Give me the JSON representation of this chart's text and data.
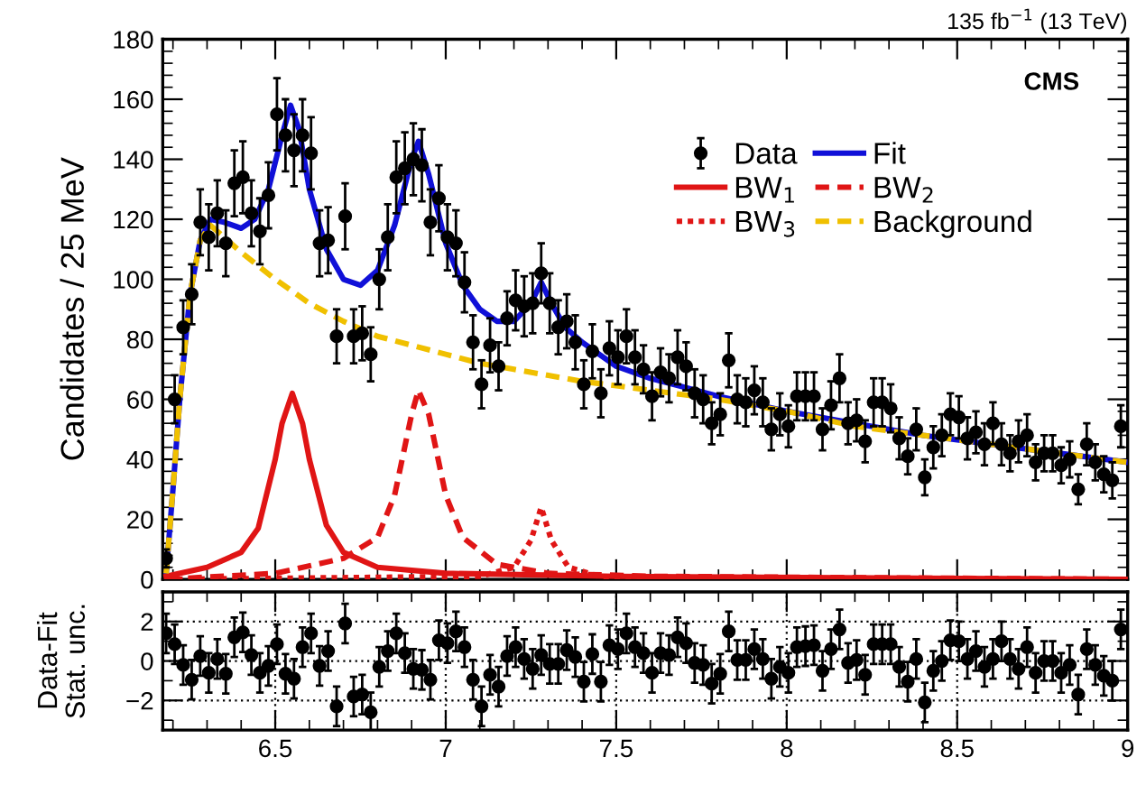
{
  "chart_data": [
    {
      "type": "scatter",
      "ylabel": "Candidates / 25 MeV",
      "annotations": [
        "135 fb$^{−1}$ (13 TeV)",
        "CMS"
      ],
      "xlim": [
        6.17,
        9.0
      ],
      "xticks": [
        6.5,
        7,
        7.5,
        8,
        8.5,
        9
      ],
      "ylim": [
        0,
        180
      ],
      "yticks": [
        0,
        20,
        40,
        60,
        80,
        100,
        120,
        140,
        160,
        180
      ],
      "tick_labels": "y",
      "legend": "top right",
      "grid": false,
      "series": [
        {
          "name": "Data",
          "marker": "circle",
          "color": "#000000",
          "x": [
            6.18,
            6.205,
            6.23,
            6.255,
            6.28,
            6.305,
            6.33,
            6.355,
            6.38,
            6.405,
            6.43,
            6.455,
            6.48,
            6.505,
            6.53,
            6.555,
            6.58,
            6.605,
            6.63,
            6.655,
            6.68,
            6.705,
            6.73,
            6.755,
            6.78,
            6.805,
            6.83,
            6.855,
            6.88,
            6.905,
            6.93,
            6.955,
            6.98,
            7.005,
            7.03,
            7.055,
            7.08,
            7.105,
            7.13,
            7.155,
            7.18,
            7.205,
            7.23,
            7.255,
            7.28,
            7.305,
            7.33,
            7.355,
            7.38,
            7.405,
            7.43,
            7.455,
            7.48,
            7.505,
            7.53,
            7.555,
            7.58,
            7.605,
            7.63,
            7.655,
            7.68,
            7.705,
            7.73,
            7.755,
            7.78,
            7.805,
            7.83,
            7.855,
            7.88,
            7.905,
            7.93,
            7.955,
            7.98,
            8.005,
            8.03,
            8.055,
            8.08,
            8.105,
            8.13,
            8.155,
            8.18,
            8.205,
            8.23,
            8.255,
            8.28,
            8.305,
            8.33,
            8.355,
            8.38,
            8.405,
            8.43,
            8.455,
            8.48,
            8.505,
            8.53,
            8.555,
            8.58,
            8.605,
            8.63,
            8.655,
            8.68,
            8.705,
            8.73,
            8.755,
            8.78,
            8.805,
            8.83,
            8.855,
            8.88,
            8.905,
            8.93,
            8.955,
            8.98
          ],
          "values": [
            7,
            60,
            84,
            95,
            119,
            114,
            122,
            112,
            132,
            134,
            122,
            116,
            128,
            155,
            148,
            143,
            148,
            142,
            112,
            113,
            81,
            121,
            81,
            82,
            75,
            100,
            114,
            134,
            137,
            140,
            138,
            119,
            127,
            114,
            112,
            99,
            79,
            65,
            78,
            71,
            87,
            93,
            91,
            92,
            102,
            92,
            84,
            86,
            79,
            65,
            76,
            62,
            77,
            74,
            81,
            74,
            70,
            61,
            69,
            67,
            74,
            71,
            62,
            60,
            52,
            55,
            73,
            60,
            59,
            63,
            59,
            50,
            55,
            51,
            61,
            61,
            61,
            50,
            58,
            67,
            52,
            53,
            46,
            59,
            59,
            57,
            47,
            41,
            50,
            34,
            44,
            48,
            55,
            54,
            47,
            49,
            45,
            52,
            45,
            42,
            46,
            48,
            39,
            42,
            42,
            38,
            40,
            30,
            45,
            39,
            35,
            33,
            51
          ],
          "errors": [
            3,
            8,
            9,
            10,
            11,
            11,
            11,
            11,
            11,
            12,
            11,
            11,
            11,
            12,
            12,
            12,
            12,
            12,
            11,
            11,
            9,
            11,
            9,
            9,
            9,
            10,
            11,
            12,
            12,
            12,
            12,
            11,
            11,
            11,
            11,
            10,
            9,
            8,
            9,
            8,
            9,
            10,
            10,
            10,
            10,
            10,
            9,
            9,
            9,
            8,
            9,
            8,
            9,
            9,
            9,
            9,
            8,
            8,
            8,
            8,
            9,
            8,
            8,
            8,
            7,
            7,
            9,
            8,
            8,
            8,
            8,
            7,
            7,
            7,
            8,
            8,
            8,
            7,
            8,
            8,
            7,
            7,
            7,
            8,
            8,
            8,
            7,
            6,
            7,
            6,
            7,
            7,
            7,
            7,
            7,
            7,
            7,
            7,
            7,
            6,
            7,
            7,
            6,
            6,
            6,
            6,
            6,
            5,
            7,
            6,
            6,
            6,
            7
          ]
        },
        {
          "name": "Fit",
          "type": "line",
          "color": "#1010d8",
          "line_style": "solid",
          "x": [
            6.18,
            6.2,
            6.22,
            6.25,
            6.28,
            6.31,
            6.35,
            6.4,
            6.44,
            6.48,
            6.52,
            6.545,
            6.57,
            6.6,
            6.65,
            6.7,
            6.75,
            6.8,
            6.85,
            6.9,
            6.92,
            6.95,
            7.0,
            7.05,
            7.1,
            7.15,
            7.2,
            7.25,
            7.28,
            7.31,
            7.35,
            7.4,
            7.5,
            7.6,
            7.8,
            8.0,
            8.2,
            8.4,
            8.6,
            8.8,
            9.0
          ],
          "values": [
            2,
            30,
            60,
            95,
            113,
            120,
            119,
            117,
            120,
            130,
            148,
            158,
            150,
            130,
            110,
            100,
            98,
            103,
            118,
            140,
            146,
            135,
            112,
            98,
            90,
            86,
            86,
            92,
            99,
            92,
            84,
            79,
            71,
            67,
            61,
            56,
            52,
            48,
            45,
            42,
            39
          ]
        },
        {
          "name": "BW$_{1}$",
          "type": "line",
          "color": "#e01515",
          "line_style": "solid",
          "x": [
            6.18,
            6.3,
            6.4,
            6.45,
            6.5,
            6.52,
            6.55,
            6.58,
            6.6,
            6.65,
            6.7,
            6.8,
            7.0,
            7.5,
            9.0
          ],
          "values": [
            1,
            4,
            9,
            17,
            40,
            52,
            62,
            52,
            40,
            18,
            9,
            4,
            2,
            1,
            0
          ]
        },
        {
          "name": "BW$_{2}$",
          "type": "line",
          "color": "#e01515",
          "line_style": "dashed",
          "x": [
            6.18,
            6.5,
            6.7,
            6.8,
            6.85,
            6.9,
            6.92,
            6.95,
            7.0,
            7.05,
            7.15,
            7.3,
            7.6,
            9.0
          ],
          "values": [
            0,
            2,
            7,
            14,
            28,
            55,
            63,
            55,
            28,
            14,
            5,
            2,
            1,
            0
          ]
        },
        {
          "name": "BW$_{3}$",
          "type": "line",
          "color": "#e01515",
          "line_style": "dotted",
          "x": [
            6.18,
            7.1,
            7.2,
            7.25,
            7.28,
            7.31,
            7.36,
            7.45,
            7.6,
            9.0
          ],
          "values": [
            0,
            1,
            4,
            13,
            24,
            13,
            4,
            1,
            0,
            0
          ]
        },
        {
          "name": "Background",
          "type": "line",
          "color": "#f0c000",
          "line_style": "dashed",
          "x": [
            6.18,
            6.2,
            6.22,
            6.25,
            6.28,
            6.31,
            6.35,
            6.4,
            6.5,
            6.6,
            6.7,
            6.8,
            6.9,
            7.0,
            7.1,
            7.2,
            7.4,
            7.6,
            7.8,
            8.0,
            8.2,
            8.4,
            8.6,
            8.8,
            9.0
          ],
          "values": [
            2,
            30,
            60,
            95,
            113,
            118,
            114,
            109,
            100,
            92,
            86,
            81,
            78,
            75,
            72,
            70,
            66,
            63,
            60,
            56,
            51,
            48,
            45,
            42,
            39
          ]
        }
      ]
    },
    {
      "type": "scatter",
      "ylabel": "Data-Fit\nStat. unc.",
      "xlim": [
        6.17,
        9.0
      ],
      "xticks": [
        6.5,
        7,
        7.5,
        8,
        8.5,
        9
      ],
      "ylim": [
        -3.5,
        3.5
      ],
      "yticks": [
        {
          "value": -2,
          "label": "−2"
        },
        0,
        2
      ],
      "grid": true,
      "series": [
        {
          "marker": "circle",
          "color": "#000000",
          "x": [
            6.18,
            6.205,
            6.23,
            6.255,
            6.28,
            6.305,
            6.33,
            6.355,
            6.38,
            6.405,
            6.43,
            6.455,
            6.48,
            6.505,
            6.53,
            6.555,
            6.58,
            6.605,
            6.63,
            6.655,
            6.68,
            6.705,
            6.73,
            6.755,
            6.78,
            6.805,
            6.83,
            6.855,
            6.88,
            6.905,
            6.93,
            6.955,
            6.98,
            7.005,
            7.03,
            7.055,
            7.08,
            7.105,
            7.13,
            7.155,
            7.18,
            7.205,
            7.23,
            7.255,
            7.28,
            7.305,
            7.33,
            7.355,
            7.38,
            7.405,
            7.43,
            7.455,
            7.48,
            7.505,
            7.53,
            7.555,
            7.58,
            7.605,
            7.63,
            7.655,
            7.68,
            7.705,
            7.73,
            7.755,
            7.78,
            7.805,
            7.83,
            7.855,
            7.88,
            7.905,
            7.93,
            7.955,
            7.98,
            8.005,
            8.03,
            8.055,
            8.08,
            8.105,
            8.13,
            8.155,
            8.18,
            8.205,
            8.23,
            8.255,
            8.28,
            8.305,
            8.33,
            8.355,
            8.38,
            8.405,
            8.43,
            8.455,
            8.48,
            8.505,
            8.53,
            8.555,
            8.58,
            8.605,
            8.63,
            8.655,
            8.68,
            8.705,
            8.73,
            8.755,
            8.78,
            8.805,
            8.83,
            8.855,
            8.88,
            8.905,
            8.93,
            8.955,
            8.98
          ],
          "values": [
            1.4,
            0.85,
            -0.2,
            -0.95,
            0.25,
            -0.6,
            0.1,
            -0.65,
            1.2,
            1.45,
            0.3,
            -0.6,
            -0.25,
            0.85,
            -0.65,
            -0.9,
            0.7,
            1.4,
            -0.25,
            0.5,
            -2.3,
            1.9,
            -1.8,
            -1.7,
            -2.6,
            -0.3,
            0.5,
            1.4,
            0.4,
            -0.4,
            -0.45,
            -0.95,
            1.05,
            0.9,
            1.5,
            0.7,
            -0.95,
            -2.3,
            -0.7,
            -1.3,
            0.25,
            0.7,
            0.1,
            -0.4,
            0.3,
            -0.15,
            -0.15,
            0.55,
            0.2,
            -1.05,
            0.35,
            -1.05,
            0.8,
            0.6,
            1.4,
            0.7,
            0.4,
            -0.6,
            0.4,
            0.3,
            1.2,
            0.9,
            -0.1,
            -0.2,
            -1.15,
            -0.65,
            1.5,
            0.05,
            0.05,
            0.6,
            0.1,
            -0.9,
            -0.3,
            -0.6,
            0.7,
            0.75,
            0.8,
            -0.5,
            0.6,
            1.6,
            -0.1,
            0.05,
            -0.7,
            0.85,
            0.85,
            0.85,
            -0.3,
            -1.05,
            0.1,
            -2.1,
            -0.5,
            0.0,
            1.05,
            1.0,
            0.1,
            0.5,
            -0.3,
            0.1,
            1.0,
            0.1,
            -0.4,
            0.7,
            -0.6,
            0.0,
            0.0,
            -0.6,
            -0.2,
            -1.7,
            0.6,
            -0.2,
            -0.75,
            -1.0,
            1.6
          ],
          "errors": [
            1,
            1,
            1,
            1,
            1,
            1,
            1,
            1,
            1,
            1,
            1,
            1,
            1,
            1,
            1,
            1,
            1,
            1,
            1,
            1,
            1,
            1,
            1,
            1,
            1,
            1,
            1,
            1,
            1,
            1,
            1,
            1,
            1,
            1,
            1,
            1,
            1,
            1,
            1,
            1,
            1,
            1,
            1,
            1,
            1,
            1,
            1,
            1,
            1,
            1,
            1,
            1,
            1,
            1,
            1,
            1,
            1,
            1,
            1,
            1,
            1,
            1,
            1,
            1,
            1,
            1,
            1,
            1,
            1,
            1,
            1,
            1,
            1,
            1,
            1,
            1,
            1,
            1,
            1,
            1,
            1,
            1,
            1,
            1,
            1,
            1,
            1,
            1,
            1,
            1,
            1,
            1,
            1,
            1,
            1,
            1,
            1,
            1,
            1,
            1,
            1,
            1,
            1,
            1,
            1,
            1,
            1,
            1,
            1,
            1,
            1,
            1,
            1
          ]
        }
      ]
    }
  ]
}
